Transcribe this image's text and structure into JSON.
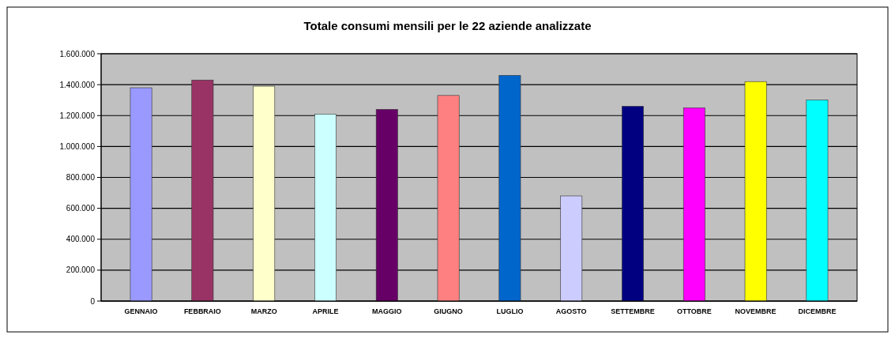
{
  "chart_data": {
    "type": "bar",
    "title": "Totale consumi mensili per le 22 aziende analizzate",
    "categories": [
      "GENNAIO",
      "FEBBRAIO",
      "MARZO",
      "APRILE",
      "MAGGIO",
      "GIUGNO",
      "LUGLIO",
      "AGOSTO",
      "SETTEMBRE",
      "OTTOBRE",
      "NOVEMBRE",
      "DICEMBRE"
    ],
    "values": [
      1380000,
      1430000,
      1390000,
      1210000,
      1240000,
      1330000,
      1460000,
      680000,
      1260000,
      1250000,
      1420000,
      1300000
    ],
    "colors": [
      "#9999ff",
      "#993366",
      "#ffffcc",
      "#ccffff",
      "#660066",
      "#ff8080",
      "#0066cc",
      "#ccccff",
      "#000080",
      "#ff00ff",
      "#ffff00",
      "#00ffff"
    ],
    "ylim": [
      0,
      1600000
    ],
    "yticks": [
      0,
      {
        "value": 200000,
        "label": "200.000"
      },
      {
        "value": 400000,
        "label": "400.000"
      },
      {
        "value": 600000,
        "label": "600.000"
      },
      {
        "value": 800000,
        "label": "800.000"
      },
      {
        "value": 1000000,
        "label": "1.000.000"
      },
      {
        "value": 1200000,
        "label": "1.200.000"
      },
      {
        "value": 1400000,
        "label": "1.400.000"
      },
      {
        "value": 1600000,
        "label": "1.600.000"
      }
    ],
    "grid": "y"
  }
}
